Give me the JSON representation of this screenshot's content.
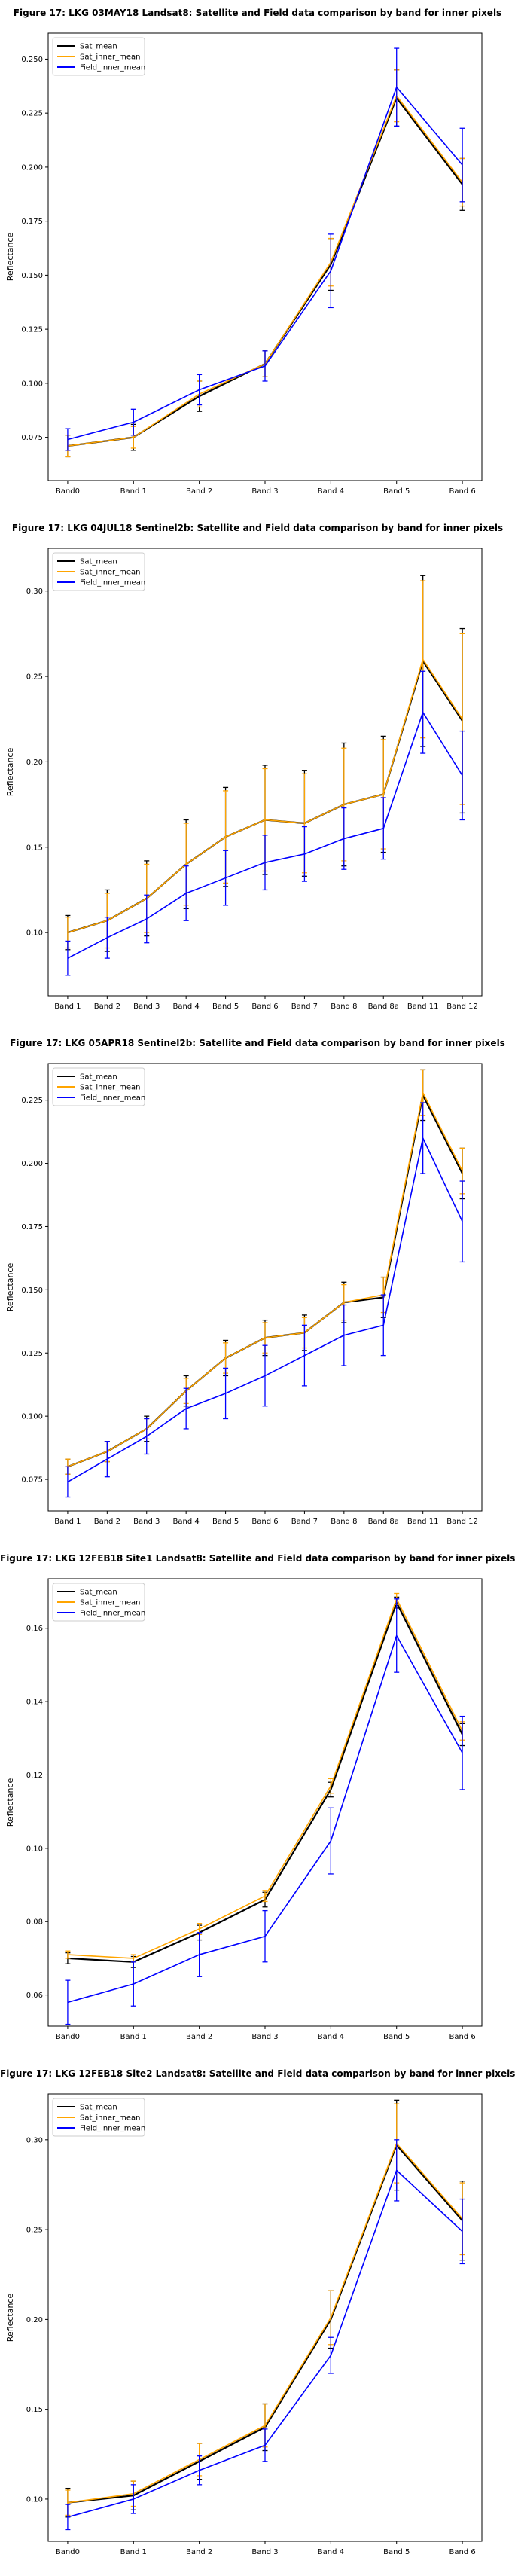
{
  "chart_data": [
    {
      "type": "line",
      "title": "Figure 17: LKG 03MAY18  Landsat8: Satellite and Field data comparison by band for inner pixels",
      "xlabel": "",
      "ylabel": "Reflectance",
      "categories": [
        "Band0",
        "Band 1",
        "Band 2",
        "Band 3",
        "Band 4",
        "Band 5",
        "Band 6"
      ],
      "ylim": [
        0.055,
        0.262
      ],
      "yticks": [
        0.075,
        0.1,
        0.125,
        0.15,
        0.175,
        0.2,
        0.225,
        0.25
      ],
      "ytick_labels": [
        "0.075",
        "0.100",
        "0.125",
        "0.150",
        "0.175",
        "0.200",
        "0.225",
        "0.250"
      ],
      "legend": "top-left",
      "series": [
        {
          "name": "Sat_mean",
          "color": "#000000",
          "values": [
            0.071,
            0.075,
            0.094,
            0.109,
            0.155,
            0.232,
            0.192
          ],
          "errors": [
            0.005,
            0.006,
            0.007,
            0.006,
            0.012,
            0.013,
            0.012
          ]
        },
        {
          "name": "Sat_inner_mean",
          "color": "#ffa500",
          "values": [
            0.071,
            0.075,
            0.095,
            0.109,
            0.156,
            0.233,
            0.193
          ],
          "errors": [
            0.005,
            0.005,
            0.006,
            0.006,
            0.011,
            0.012,
            0.011
          ]
        },
        {
          "name": "Field_inner_mean",
          "color": "#0000ff",
          "values": [
            0.074,
            0.082,
            0.097,
            0.108,
            0.152,
            0.237,
            0.201
          ],
          "errors": [
            0.005,
            0.006,
            0.007,
            0.007,
            0.017,
            0.018,
            0.017
          ]
        }
      ]
    },
    {
      "type": "line",
      "title": "Figure 17: LKG 04JUL18  Sentinel2b: Satellite and Field data comparison by band for inner pixels",
      "xlabel": "",
      "ylabel": "Reflectance",
      "categories": [
        "Band 1",
        "Band 2",
        "Band 3",
        "Band 4",
        "Band 5",
        "Band 6",
        "Band 7",
        "Band 8",
        "Band 8a",
        "Band 11",
        "Band 12"
      ],
      "ylim": [
        0.063,
        0.325
      ],
      "yticks": [
        0.1,
        0.15,
        0.2,
        0.25,
        0.3
      ],
      "ytick_labels": [
        "0.10",
        "0.15",
        "0.20",
        "0.25",
        "0.30"
      ],
      "legend": "top-left",
      "series": [
        {
          "name": "Sat_mean",
          "color": "#000000",
          "values": [
            0.1,
            0.107,
            0.12,
            0.14,
            0.156,
            0.166,
            0.164,
            0.175,
            0.181,
            0.259,
            0.224
          ],
          "errors": [
            0.01,
            0.018,
            0.022,
            0.026,
            0.029,
            0.032,
            0.031,
            0.036,
            0.034,
            0.05,
            0.054
          ]
        },
        {
          "name": "Sat_inner_mean",
          "color": "#ffa500",
          "values": [
            0.1,
            0.107,
            0.12,
            0.14,
            0.156,
            0.166,
            0.164,
            0.175,
            0.181,
            0.26,
            0.225
          ],
          "errors": [
            0.009,
            0.016,
            0.02,
            0.024,
            0.027,
            0.03,
            0.029,
            0.033,
            0.032,
            0.046,
            0.05
          ]
        },
        {
          "name": "Field_inner_mean",
          "color": "#0000ff",
          "values": [
            0.085,
            0.097,
            0.108,
            0.123,
            0.132,
            0.141,
            0.146,
            0.155,
            0.161,
            0.229,
            0.192
          ],
          "errors": [
            0.01,
            0.012,
            0.014,
            0.016,
            0.016,
            0.016,
            0.016,
            0.018,
            0.018,
            0.024,
            0.026
          ]
        }
      ]
    },
    {
      "type": "line",
      "title": "Figure 17: LKG 05APR18  Sentinel2b: Satellite and Field data comparison by band for inner pixels",
      "xlabel": "",
      "ylabel": "Reflectance",
      "categories": [
        "Band 1",
        "Band 2",
        "Band 3",
        "Band 4",
        "Band 5",
        "Band 6",
        "Band 7",
        "Band 8",
        "Band 8a",
        "Band 11",
        "Band 12"
      ],
      "ylim": [
        0.0625,
        0.2395
      ],
      "yticks": [
        0.075,
        0.1,
        0.125,
        0.15,
        0.175,
        0.2,
        0.225
      ],
      "ytick_labels": [
        "0.075",
        "0.100",
        "0.125",
        "0.150",
        "0.175",
        "0.200",
        "0.225"
      ],
      "legend": "top-left",
      "series": [
        {
          "name": "Sat_mean",
          "color": "#000000",
          "values": [
            0.08,
            0.086,
            0.095,
            0.11,
            0.123,
            0.131,
            0.133,
            0.145,
            0.147,
            0.227,
            0.196
          ],
          "errors": [
            0.003,
            0.004,
            0.005,
            0.006,
            0.007,
            0.007,
            0.007,
            0.008,
            0.008,
            0.01,
            0.01
          ]
        },
        {
          "name": "Sat_inner_mean",
          "color": "#ffa500",
          "values": [
            0.08,
            0.086,
            0.095,
            0.11,
            0.123,
            0.131,
            0.133,
            0.145,
            0.148,
            0.228,
            0.197
          ],
          "errors": [
            0.003,
            0.004,
            0.004,
            0.005,
            0.006,
            0.006,
            0.006,
            0.007,
            0.007,
            0.009,
            0.009
          ]
        },
        {
          "name": "Field_inner_mean",
          "color": "#0000ff",
          "values": [
            0.074,
            0.083,
            0.092,
            0.103,
            0.109,
            0.116,
            0.124,
            0.132,
            0.136,
            0.21,
            0.177
          ],
          "errors": [
            0.006,
            0.007,
            0.007,
            0.008,
            0.01,
            0.012,
            0.012,
            0.012,
            0.012,
            0.014,
            0.016
          ]
        }
      ]
    },
    {
      "type": "line",
      "title": "Figure 17: LKG 12FEB18 Site1 Landsat8: Satellite and Field data comparison by band for inner pixels",
      "xlabel": "",
      "ylabel": "Reflectance",
      "categories": [
        "Band0",
        "Band 1",
        "Band 2",
        "Band 3",
        "Band 4",
        "Band 5",
        "Band 6"
      ],
      "ylim": [
        0.0515,
        0.1735
      ],
      "yticks": [
        0.06,
        0.08,
        0.1,
        0.12,
        0.14,
        0.16
      ],
      "ytick_labels": [
        "0.06",
        "0.08",
        "0.10",
        "0.12",
        "0.14",
        "0.16"
      ],
      "legend": "top-left",
      "series": [
        {
          "name": "Sat_mean",
          "color": "#000000",
          "values": [
            0.07,
            0.069,
            0.077,
            0.086,
            0.116,
            0.167,
            0.131
          ],
          "errors": [
            0.0015,
            0.0015,
            0.002,
            0.002,
            0.002,
            0.0015,
            0.003
          ]
        },
        {
          "name": "Sat_inner_mean",
          "color": "#ffa500",
          "values": [
            0.071,
            0.07,
            0.078,
            0.087,
            0.117,
            0.168,
            0.132
          ],
          "errors": [
            0.001,
            0.001,
            0.0015,
            0.0015,
            0.002,
            0.0015,
            0.0025
          ]
        },
        {
          "name": "Field_inner_mean",
          "color": "#0000ff",
          "values": [
            0.058,
            0.063,
            0.071,
            0.076,
            0.102,
            0.158,
            0.126
          ],
          "errors": [
            0.006,
            0.006,
            0.006,
            0.007,
            0.009,
            0.01,
            0.01
          ]
        }
      ]
    },
    {
      "type": "line",
      "title": "Figure 17: LKG 12FEB18 Site2 Landsat8: Satellite and Field data comparison by band for inner pixels",
      "xlabel": "",
      "ylabel": "Reflectance",
      "categories": [
        "Band0",
        "Band 1",
        "Band 2",
        "Band 3",
        "Band 4",
        "Band 5",
        "Band 6"
      ],
      "ylim": [
        0.0765,
        0.3255
      ],
      "yticks": [
        0.1,
        0.15,
        0.2,
        0.25,
        0.3
      ],
      "ytick_labels": [
        "0.10",
        "0.15",
        "0.20",
        "0.25",
        "0.30"
      ],
      "legend": "top-left",
      "series": [
        {
          "name": "Sat_mean",
          "color": "#000000",
          "values": [
            0.098,
            0.102,
            0.121,
            0.14,
            0.2,
            0.297,
            0.255
          ],
          "errors": [
            0.008,
            0.008,
            0.01,
            0.013,
            0.016,
            0.025,
            0.022
          ]
        },
        {
          "name": "Sat_inner_mean",
          "color": "#ffa500",
          "values": [
            0.098,
            0.103,
            0.122,
            0.141,
            0.201,
            0.298,
            0.256
          ],
          "errors": [
            0.007,
            0.007,
            0.009,
            0.012,
            0.015,
            0.022,
            0.02
          ]
        },
        {
          "name": "Field_inner_mean",
          "color": "#0000ff",
          "values": [
            0.09,
            0.1,
            0.116,
            0.13,
            0.18,
            0.283,
            0.249
          ],
          "errors": [
            0.007,
            0.008,
            0.008,
            0.009,
            0.01,
            0.017,
            0.018
          ]
        }
      ]
    }
  ]
}
